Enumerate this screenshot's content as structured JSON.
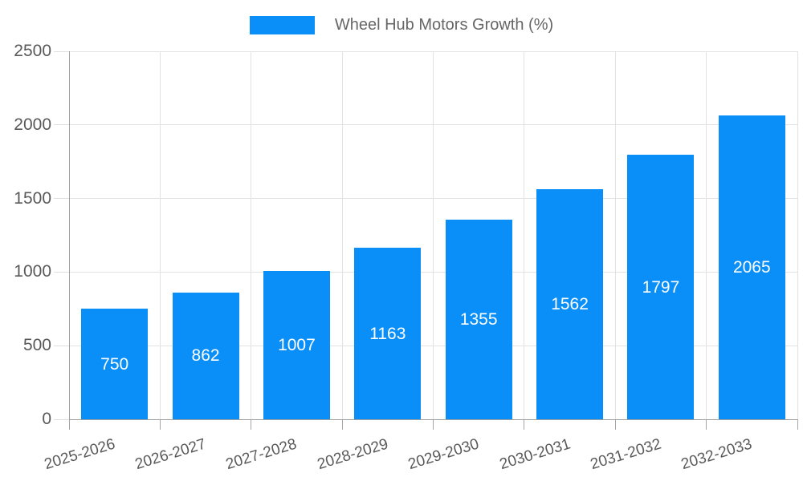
{
  "legend": {
    "series_label": "Wheel Hub Motors Growth (%)"
  },
  "colors": {
    "bar": "#0a8ff8",
    "axis": "#a0a0a0",
    "grid": "#e2e2e2",
    "tick_label": "#595959",
    "legend_text": "#666666",
    "bar_value_text": "#ffffff",
    "background": "#ffffff"
  },
  "chart_data": {
    "type": "bar",
    "title": "",
    "legend_entries": [
      "Wheel Hub Motors Growth (%)"
    ],
    "legend_position": "top-center",
    "categories": [
      "2025-2026",
      "2026-2027",
      "2027-2028",
      "2028-2029",
      "2029-2030",
      "2030-2031",
      "2031-2032",
      "2032-2033"
    ],
    "series": [
      {
        "name": "Wheel Hub Motors Growth (%)",
        "values": [
          750,
          862,
          1007,
          1163,
          1355,
          1562,
          1797,
          2065
        ],
        "color": "#0a8ff8"
      }
    ],
    "data_labels": [
      "750",
      "862",
      "1007",
      "1163",
      "1355",
      "1562",
      "1797",
      "2065"
    ],
    "xlabel": "",
    "ylabel": "",
    "ylim": [
      0,
      2500
    ],
    "yticks": [
      0,
      500,
      1000,
      1500,
      2000,
      2500
    ],
    "ytick_labels": [
      "0",
      "500",
      "1000",
      "1500",
      "2000",
      "2500"
    ],
    "grid": "on",
    "x_label_rotation_deg": -17
  }
}
